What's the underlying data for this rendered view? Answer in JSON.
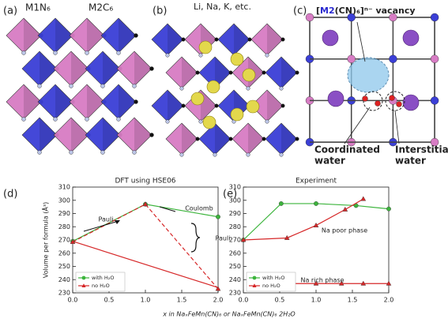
{
  "figure": {
    "panel_labels": [
      "(a)",
      "(b)",
      "(c)",
      "(d)",
      "(e)"
    ],
    "a_labels": [
      "M1N₆",
      "M2C₆"
    ],
    "b_label": "Li, Na, K, etc.",
    "c_vacancy": [
      "[",
      "M2",
      "(CN)₆]ⁿ⁻ vacancy"
    ],
    "c_coordinated": [
      "Coordinated",
      "water"
    ],
    "c_interstitial": [
      "Interstitial",
      "water"
    ],
    "xlabel": "x in NaₓFeMn(CN)₆ or NaₓFeMn(CN)₆ 2H₂O"
  },
  "chart_data": [
    {
      "type": "line",
      "title": "DFT using HSE06",
      "ylabel": "Volume per formula (Å³)",
      "xlim": [
        0,
        2
      ],
      "xticks": [
        {
          "value": 0,
          "label": "0.0"
        },
        0.5,
        {
          "value": 1,
          "label": "1.0"
        },
        1.5,
        {
          "value": 2,
          "label": "2.0"
        }
      ],
      "ylim": [
        230,
        310
      ],
      "yticks": [
        230,
        240,
        250,
        260,
        270,
        280,
        290,
        300,
        310
      ],
      "legend": "lower left",
      "series": [
        {
          "name": "with H₂O",
          "color": "#3cb43c",
          "marker": "circle",
          "x": [
            0,
            1,
            2
          ],
          "values": [
            269,
            297,
            287.5
          ]
        },
        {
          "name": "no H₂O",
          "color": "#d62728",
          "marker": "triangle",
          "dash": true,
          "x": [
            0,
            1,
            2
          ],
          "values": [
            268.5,
            297,
            233
          ]
        }
      ],
      "reference_line": {
        "color": "#d62728",
        "x": [
          0,
          2
        ],
        "values": [
          269,
          234
        ]
      },
      "annotations": [
        "Pauli",
        "Coulomb",
        "Pauli"
      ]
    },
    {
      "type": "line",
      "title": "Experiment",
      "xlim": [
        0,
        2
      ],
      "xticks": [
        {
          "value": 0,
          "label": "0.0"
        },
        0.5,
        {
          "value": 1,
          "label": "1.0"
        },
        1.5,
        {
          "value": 2,
          "label": "2.0"
        }
      ],
      "ylim": [
        230,
        310
      ],
      "yticks": [
        230,
        240,
        250,
        260,
        270,
        280,
        290,
        300,
        310
      ],
      "legend": "lower left",
      "series": [
        {
          "name": "with H₂O",
          "color": "#3cb43c",
          "marker": "circle",
          "x": [
            0,
            0.52,
            1.0,
            1.55,
            2.0
          ],
          "values": [
            270,
            297.5,
            297.5,
            296,
            293.5
          ]
        },
        {
          "name": "no H₂O",
          "color": "#d62728",
          "marker": "triangle",
          "x": [
            0,
            0.6,
            1.0,
            1.4,
            1.65
          ],
          "values": [
            270,
            271.5,
            281,
            293,
            301
          ]
        },
        {
          "name": "no H₂O",
          "color": "#d62728",
          "marker": "triangle",
          "x": [
            0.6,
            1.0,
            1.35,
            1.65,
            2.0
          ],
          "values": [
            237,
            237,
            237,
            237,
            237
          ]
        }
      ],
      "annotations": [
        "Na poor phase",
        "Na rich phase"
      ]
    }
  ]
}
